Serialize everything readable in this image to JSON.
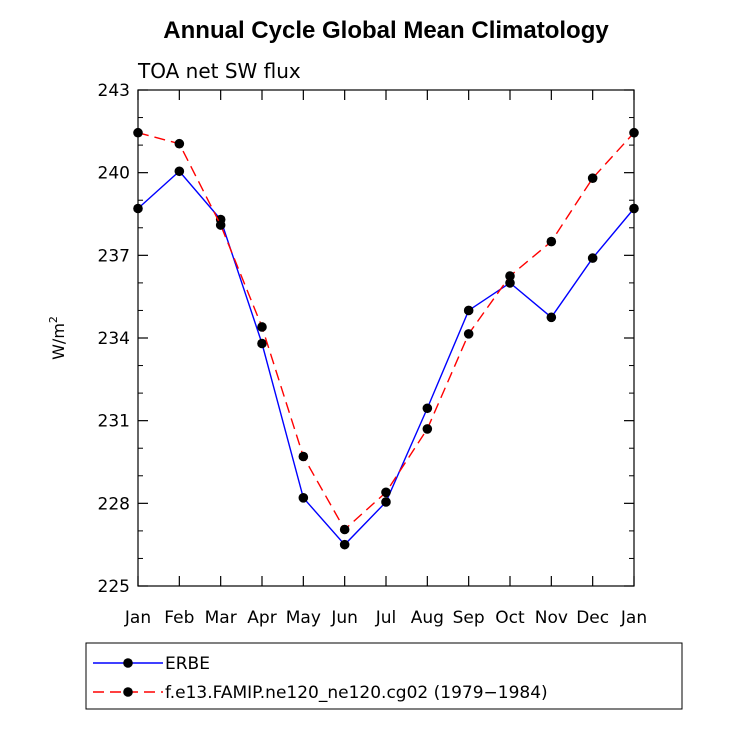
{
  "chart_data": {
    "type": "line",
    "title": "Annual Cycle Global Mean Climatology",
    "subtitle": "TOA net SW flux",
    "ylabel": "W/m",
    "ylabel_superscript": "2",
    "ylim": [
      225,
      243
    ],
    "yticks": [
      225,
      228,
      231,
      234,
      237,
      240,
      243
    ],
    "ytick_labels": [
      "225",
      "228",
      "231",
      "234",
      "237",
      "240",
      "243"
    ],
    "categories": [
      "Jan",
      "Feb",
      "Mar",
      "Apr",
      "May",
      "Jun",
      "Jul",
      "Aug",
      "Sep",
      "Oct",
      "Nov",
      "Dec",
      "Jan"
    ],
    "series": [
      {
        "name": "ERBE",
        "color": "#0000ff",
        "dashed": false,
        "values": [
          238.7,
          240.05,
          238.3,
          233.8,
          228.2,
          226.5,
          228.05,
          231.45,
          235.0,
          236.0,
          234.75,
          236.9,
          238.7
        ]
      },
      {
        "name": "f.e13.FAMIP.ne120_ne120.cg02 (1979−1984)",
        "color": "#ff0000",
        "dashed": true,
        "values": [
          241.45,
          241.05,
          238.1,
          234.4,
          229.7,
          227.05,
          228.4,
          230.7,
          234.15,
          236.25,
          237.5,
          239.8,
          241.45
        ]
      }
    ],
    "legend_position": "bottom"
  }
}
